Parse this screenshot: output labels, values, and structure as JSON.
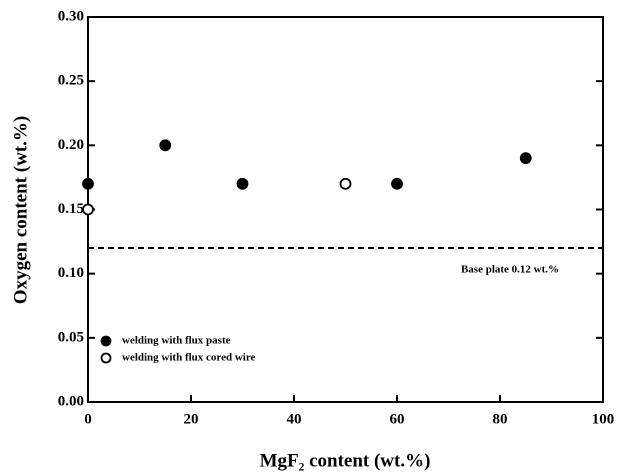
{
  "chart_data": {
    "type": "scatter",
    "x_label": "MgF₂ content (wt.%)",
    "y_label": "Oxygen content (wt.%)",
    "xlim": [
      0,
      100
    ],
    "xticks": [
      0,
      20,
      40,
      60,
      80,
      100
    ],
    "ylim": [
      0,
      0.3
    ],
    "yticks": [
      {
        "value": 0,
        "label": "0.00"
      },
      0.05,
      {
        "value": 0.1,
        "label": "0.10"
      },
      0.15,
      {
        "value": 0.2,
        "label": "0.20"
      },
      0.25,
      {
        "value": 0.3,
        "label": "0.30"
      }
    ],
    "series": [
      {
        "name": "welding with flux paste",
        "color": "#000000",
        "filled": true,
        "x": [
          0,
          15,
          30,
          60,
          85
        ],
        "values": [
          0.17,
          0.2,
          0.17,
          0.17,
          0.19
        ]
      },
      {
        "name": "welding with flux cored wire",
        "color": "#000000",
        "filled": false,
        "x": [
          0,
          50
        ],
        "values": [
          0.15,
          0.17
        ]
      }
    ],
    "reference_line": {
      "value": 0.12,
      "label": "Base plate 0.12 wt.%"
    },
    "legend": "lower left"
  }
}
